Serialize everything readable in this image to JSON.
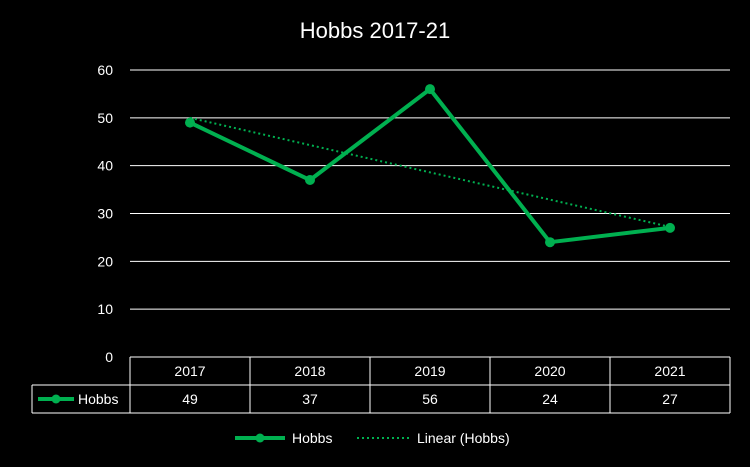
{
  "chart_data": {
    "type": "line",
    "title": "Hobbs 2017-21",
    "categories": [
      "2017",
      "2018",
      "2019",
      "2020",
      "2021"
    ],
    "series": [
      {
        "name": "Hobbs",
        "values": [
          49,
          37,
          56,
          24,
          27
        ],
        "color": "#00b050"
      }
    ],
    "trendline": {
      "name": "Linear (Hobbs)",
      "type": "linear",
      "color": "#00b050"
    },
    "ylim": [
      0,
      60
    ],
    "y_ticks": [
      "0",
      "10",
      "20",
      "30",
      "40",
      "50",
      "60"
    ],
    "grid": true,
    "data_table": true,
    "legend": "bottom"
  }
}
